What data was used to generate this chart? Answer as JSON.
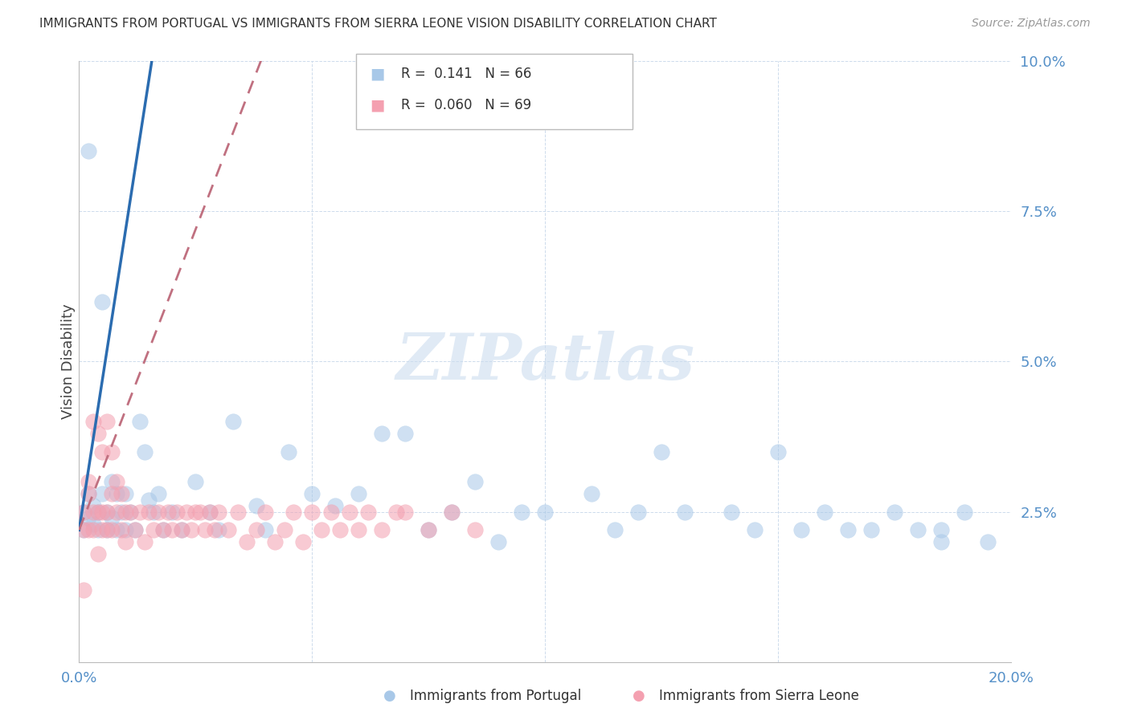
{
  "title": "IMMIGRANTS FROM PORTUGAL VS IMMIGRANTS FROM SIERRA LEONE VISION DISABILITY CORRELATION CHART",
  "source": "Source: ZipAtlas.com",
  "xlabel_portugal": "Immigrants from Portugal",
  "xlabel_sierraleone": "Immigrants from Sierra Leone",
  "ylabel": "Vision Disability",
  "xlim": [
    0.0,
    0.2
  ],
  "ylim": [
    0.0,
    0.1
  ],
  "xticks": [
    0.0,
    0.05,
    0.1,
    0.15,
    0.2
  ],
  "yticks": [
    0.0,
    0.025,
    0.05,
    0.075,
    0.1
  ],
  "ytick_labels": [
    "",
    "2.5%",
    "5.0%",
    "7.5%",
    "10.0%"
  ],
  "xtick_labels": [
    "0.0%",
    "",
    "",
    "",
    "20.0%"
  ],
  "color_portugal": "#a8c8e8",
  "color_sierraleone": "#f4a0b0",
  "trendline_portugal_color": "#2b6cb0",
  "trendline_sierraleone_color": "#c07080",
  "R_portugal": 0.141,
  "N_portugal": 66,
  "R_sierraleone": 0.06,
  "N_sierraleone": 69,
  "watermark": "ZIPatlas",
  "port_x": [
    0.001,
    0.001,
    0.002,
    0.002,
    0.003,
    0.003,
    0.004,
    0.004,
    0.005,
    0.005,
    0.006,
    0.006,
    0.007,
    0.007,
    0.008,
    0.008,
    0.009,
    0.01,
    0.01,
    0.011,
    0.012,
    0.013,
    0.014,
    0.015,
    0.016,
    0.017,
    0.018,
    0.02,
    0.022,
    0.025,
    0.028,
    0.03,
    0.033,
    0.038,
    0.04,
    0.045,
    0.05,
    0.055,
    0.06,
    0.065,
    0.07,
    0.075,
    0.08,
    0.085,
    0.09,
    0.095,
    0.1,
    0.11,
    0.115,
    0.12,
    0.125,
    0.13,
    0.14,
    0.145,
    0.15,
    0.155,
    0.16,
    0.165,
    0.17,
    0.175,
    0.18,
    0.185,
    0.19,
    0.195,
    0.002,
    0.185
  ],
  "port_y": [
    0.025,
    0.022,
    0.028,
    0.024,
    0.026,
    0.023,
    0.025,
    0.022,
    0.028,
    0.06,
    0.025,
    0.022,
    0.03,
    0.024,
    0.028,
    0.022,
    0.025,
    0.028,
    0.022,
    0.025,
    0.022,
    0.04,
    0.035,
    0.027,
    0.025,
    0.028,
    0.022,
    0.025,
    0.022,
    0.03,
    0.025,
    0.022,
    0.04,
    0.026,
    0.022,
    0.035,
    0.028,
    0.026,
    0.028,
    0.038,
    0.038,
    0.022,
    0.025,
    0.03,
    0.02,
    0.025,
    0.025,
    0.028,
    0.022,
    0.025,
    0.035,
    0.025,
    0.025,
    0.022,
    0.035,
    0.022,
    0.025,
    0.022,
    0.022,
    0.025,
    0.022,
    0.02,
    0.025,
    0.02,
    0.085,
    0.022
  ],
  "sl_x": [
    0.001,
    0.001,
    0.001,
    0.002,
    0.002,
    0.002,
    0.003,
    0.003,
    0.003,
    0.004,
    0.004,
    0.004,
    0.005,
    0.005,
    0.005,
    0.006,
    0.006,
    0.006,
    0.007,
    0.007,
    0.007,
    0.008,
    0.008,
    0.009,
    0.009,
    0.01,
    0.01,
    0.011,
    0.012,
    0.013,
    0.014,
    0.015,
    0.016,
    0.017,
    0.018,
    0.019,
    0.02,
    0.021,
    0.022,
    0.023,
    0.024,
    0.025,
    0.026,
    0.027,
    0.028,
    0.029,
    0.03,
    0.032,
    0.034,
    0.036,
    0.038,
    0.04,
    0.042,
    0.044,
    0.046,
    0.048,
    0.05,
    0.052,
    0.054,
    0.056,
    0.058,
    0.06,
    0.062,
    0.065,
    0.068,
    0.07,
    0.075,
    0.08,
    0.085
  ],
  "sl_y": [
    0.025,
    0.022,
    0.012,
    0.03,
    0.028,
    0.022,
    0.025,
    0.04,
    0.022,
    0.038,
    0.025,
    0.018,
    0.035,
    0.025,
    0.022,
    0.04,
    0.025,
    0.022,
    0.035,
    0.028,
    0.022,
    0.03,
    0.025,
    0.028,
    0.022,
    0.025,
    0.02,
    0.025,
    0.022,
    0.025,
    0.02,
    0.025,
    0.022,
    0.025,
    0.022,
    0.025,
    0.022,
    0.025,
    0.022,
    0.025,
    0.022,
    0.025,
    0.025,
    0.022,
    0.025,
    0.022,
    0.025,
    0.022,
    0.025,
    0.02,
    0.022,
    0.025,
    0.02,
    0.022,
    0.025,
    0.02,
    0.025,
    0.022,
    0.025,
    0.022,
    0.025,
    0.022,
    0.025,
    0.022,
    0.025,
    0.025,
    0.022,
    0.025,
    0.022
  ]
}
